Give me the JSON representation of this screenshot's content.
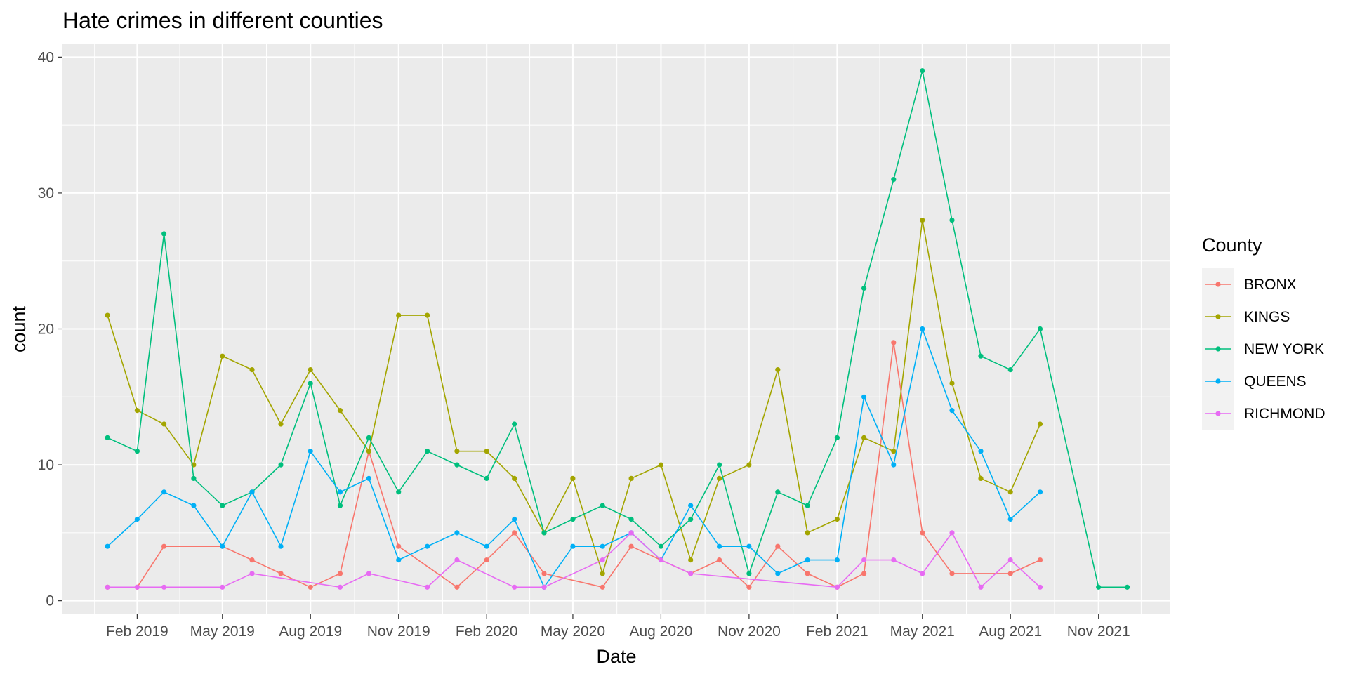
{
  "chart_data": {
    "type": "line",
    "title": "Hate crimes in different counties",
    "xlabel": "Date",
    "ylabel": "count",
    "ylim": [
      -1,
      41
    ],
    "xlim": [
      "2018-11-15",
      "2022-01-15"
    ],
    "y_ticks": [
      0,
      10,
      20,
      30,
      40
    ],
    "x_ticks": [
      {
        "date": "2019-02-01",
        "label": "Feb 2019"
      },
      {
        "date": "2019-05-01",
        "label": "May 2019"
      },
      {
        "date": "2019-08-01",
        "label": "Aug 2019"
      },
      {
        "date": "2019-11-01",
        "label": "Nov 2019"
      },
      {
        "date": "2020-02-01",
        "label": "Feb 2020"
      },
      {
        "date": "2020-05-01",
        "label": "May 2020"
      },
      {
        "date": "2020-08-01",
        "label": "Aug 2020"
      },
      {
        "date": "2020-11-01",
        "label": "Nov 2020"
      },
      {
        "date": "2021-02-01",
        "label": "Feb 2021"
      },
      {
        "date": "2021-05-01",
        "label": "May 2021"
      },
      {
        "date": "2021-08-01",
        "label": "Aug 2021"
      },
      {
        "date": "2021-11-01",
        "label": "Nov 2021"
      }
    ],
    "grid": true,
    "legend": {
      "title": "County",
      "position": "right"
    },
    "series": [
      {
        "name": "BRONX",
        "color": "#F8766D",
        "points": [
          [
            "2019-01-01",
            1
          ],
          [
            "2019-02-01",
            1
          ],
          [
            "2019-03-01",
            4
          ],
          [
            "2019-05-01",
            4
          ],
          [
            "2019-06-01",
            3
          ],
          [
            "2019-07-01",
            2
          ],
          [
            "2019-08-01",
            1
          ],
          [
            "2019-09-01",
            2
          ],
          [
            "2019-10-01",
            11
          ],
          [
            "2019-11-01",
            4
          ],
          [
            "2020-01-01",
            1
          ],
          [
            "2020-02-01",
            3
          ],
          [
            "2020-03-01",
            5
          ],
          [
            "2020-04-01",
            2
          ],
          [
            "2020-06-01",
            1
          ],
          [
            "2020-07-01",
            4
          ],
          [
            "2020-08-01",
            3
          ],
          [
            "2020-09-01",
            2
          ],
          [
            "2020-10-01",
            3
          ],
          [
            "2020-11-01",
            1
          ],
          [
            "2020-12-01",
            4
          ],
          [
            "2021-01-01",
            2
          ],
          [
            "2021-02-01",
            1
          ],
          [
            "2021-03-01",
            2
          ],
          [
            "2021-04-01",
            19
          ],
          [
            "2021-05-01",
            5
          ],
          [
            "2021-06-01",
            2
          ],
          [
            "2021-08-01",
            2
          ],
          [
            "2021-09-01",
            3
          ]
        ]
      },
      {
        "name": "KINGS",
        "color": "#A3A500",
        "points": [
          [
            "2019-01-01",
            21
          ],
          [
            "2019-02-01",
            14
          ],
          [
            "2019-03-01",
            13
          ],
          [
            "2019-04-01",
            10
          ],
          [
            "2019-05-01",
            18
          ],
          [
            "2019-06-01",
            17
          ],
          [
            "2019-07-01",
            13
          ],
          [
            "2019-08-01",
            17
          ],
          [
            "2019-09-01",
            14
          ],
          [
            "2019-10-01",
            11
          ],
          [
            "2019-11-01",
            21
          ],
          [
            "2019-12-01",
            21
          ],
          [
            "2020-01-01",
            11
          ],
          [
            "2020-02-01",
            11
          ],
          [
            "2020-03-01",
            9
          ],
          [
            "2020-04-01",
            5
          ],
          [
            "2020-05-01",
            9
          ],
          [
            "2020-06-01",
            2
          ],
          [
            "2020-07-01",
            9
          ],
          [
            "2020-08-01",
            10
          ],
          [
            "2020-09-01",
            3
          ],
          [
            "2020-10-01",
            9
          ],
          [
            "2020-11-01",
            10
          ],
          [
            "2020-12-01",
            17
          ],
          [
            "2021-01-01",
            5
          ],
          [
            "2021-02-01",
            6
          ],
          [
            "2021-03-01",
            12
          ],
          [
            "2021-04-01",
            11
          ],
          [
            "2021-05-01",
            28
          ],
          [
            "2021-06-01",
            16
          ],
          [
            "2021-07-01",
            9
          ],
          [
            "2021-08-01",
            8
          ],
          [
            "2021-09-01",
            13
          ]
        ]
      },
      {
        "name": "NEW YORK",
        "color": "#00BF7D",
        "points": [
          [
            "2019-01-01",
            12
          ],
          [
            "2019-02-01",
            11
          ],
          [
            "2019-03-01",
            27
          ],
          [
            "2019-04-01",
            9
          ],
          [
            "2019-05-01",
            7
          ],
          [
            "2019-06-01",
            8
          ],
          [
            "2019-07-01",
            10
          ],
          [
            "2019-08-01",
            16
          ],
          [
            "2019-09-01",
            7
          ],
          [
            "2019-10-01",
            12
          ],
          [
            "2019-11-01",
            8
          ],
          [
            "2019-12-01",
            11
          ],
          [
            "2020-01-01",
            10
          ],
          [
            "2020-02-01",
            9
          ],
          [
            "2020-03-01",
            13
          ],
          [
            "2020-04-01",
            5
          ],
          [
            "2020-05-01",
            6
          ],
          [
            "2020-06-01",
            7
          ],
          [
            "2020-07-01",
            6
          ],
          [
            "2020-08-01",
            4
          ],
          [
            "2020-09-01",
            6
          ],
          [
            "2020-10-01",
            10
          ],
          [
            "2020-11-01",
            2
          ],
          [
            "2020-12-01",
            8
          ],
          [
            "2021-01-01",
            7
          ],
          [
            "2021-02-01",
            12
          ],
          [
            "2021-03-01",
            23
          ],
          [
            "2021-04-01",
            31
          ],
          [
            "2021-05-01",
            39
          ],
          [
            "2021-06-01",
            28
          ],
          [
            "2021-07-01",
            18
          ],
          [
            "2021-08-01",
            17
          ],
          [
            "2021-09-01",
            20
          ],
          [
            "2021-11-01",
            1
          ],
          [
            "2021-12-01",
            1
          ]
        ]
      },
      {
        "name": "QUEENS",
        "color": "#00B0F6",
        "points": [
          [
            "2019-01-01",
            4
          ],
          [
            "2019-02-01",
            6
          ],
          [
            "2019-03-01",
            8
          ],
          [
            "2019-04-01",
            7
          ],
          [
            "2019-05-01",
            4
          ],
          [
            "2019-06-01",
            8
          ],
          [
            "2019-07-01",
            4
          ],
          [
            "2019-08-01",
            11
          ],
          [
            "2019-09-01",
            8
          ],
          [
            "2019-10-01",
            9
          ],
          [
            "2019-11-01",
            3
          ],
          [
            "2019-12-01",
            4
          ],
          [
            "2020-01-01",
            5
          ],
          [
            "2020-02-01",
            4
          ],
          [
            "2020-03-01",
            6
          ],
          [
            "2020-04-01",
            1
          ],
          [
            "2020-05-01",
            4
          ],
          [
            "2020-06-01",
            4
          ],
          [
            "2020-07-01",
            5
          ],
          [
            "2020-08-01",
            3
          ],
          [
            "2020-09-01",
            7
          ],
          [
            "2020-10-01",
            4
          ],
          [
            "2020-11-01",
            4
          ],
          [
            "2020-12-01",
            2
          ],
          [
            "2021-01-01",
            3
          ],
          [
            "2021-02-01",
            3
          ],
          [
            "2021-03-01",
            15
          ],
          [
            "2021-04-01",
            10
          ],
          [
            "2021-05-01",
            20
          ],
          [
            "2021-06-01",
            14
          ],
          [
            "2021-07-01",
            11
          ],
          [
            "2021-08-01",
            6
          ],
          [
            "2021-09-01",
            8
          ]
        ]
      },
      {
        "name": "RICHMOND",
        "color": "#E76BF3",
        "points": [
          [
            "2019-01-01",
            1
          ],
          [
            "2019-02-01",
            1
          ],
          [
            "2019-03-01",
            1
          ],
          [
            "2019-05-01",
            1
          ],
          [
            "2019-06-01",
            2
          ],
          [
            "2019-09-01",
            1
          ],
          [
            "2019-10-01",
            2
          ],
          [
            "2019-12-01",
            1
          ],
          [
            "2020-01-01",
            3
          ],
          [
            "2020-03-01",
            1
          ],
          [
            "2020-04-01",
            1
          ],
          [
            "2020-06-01",
            3
          ],
          [
            "2020-07-01",
            5
          ],
          [
            "2020-08-01",
            3
          ],
          [
            "2020-09-01",
            2
          ],
          [
            "2021-02-01",
            1
          ],
          [
            "2021-03-01",
            3
          ],
          [
            "2021-04-01",
            3
          ],
          [
            "2021-05-01",
            2
          ],
          [
            "2021-06-01",
            5
          ],
          [
            "2021-07-01",
            1
          ],
          [
            "2021-08-01",
            3
          ],
          [
            "2021-09-01",
            1
          ]
        ]
      }
    ]
  }
}
